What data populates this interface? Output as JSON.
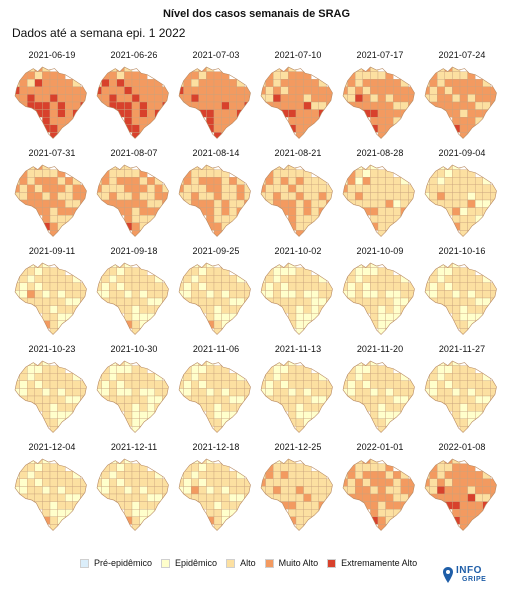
{
  "title": "Nível dos casos semanais de SRAG",
  "subtitle": "Dados até a semana epi. 1 2022",
  "colors": {
    "pre": "#dbeefa",
    "epi": "#ffffcc",
    "alto": "#fce0a1",
    "muito": "#f39a60",
    "extremo": "#d8412c",
    "border": "#c9a27c"
  },
  "maps": [
    {
      "date": "2021-06-19",
      "level": 3.2
    },
    {
      "date": "2021-06-26",
      "level": 3.3
    },
    {
      "date": "2021-07-03",
      "level": 3.1
    },
    {
      "date": "2021-07-10",
      "level": 2.9
    },
    {
      "date": "2021-07-17",
      "level": 2.8
    },
    {
      "date": "2021-07-24",
      "level": 2.7
    },
    {
      "date": "2021-07-31",
      "level": 2.6
    },
    {
      "date": "2021-08-07",
      "level": 2.5
    },
    {
      "date": "2021-08-14",
      "level": 2.4
    },
    {
      "date": "2021-08-21",
      "level": 2.3
    },
    {
      "date": "2021-08-28",
      "level": 2.0
    },
    {
      "date": "2021-09-04",
      "level": 1.9
    },
    {
      "date": "2021-09-11",
      "level": 1.8
    },
    {
      "date": "2021-09-18",
      "level": 1.7
    },
    {
      "date": "2021-09-25",
      "level": 1.7
    },
    {
      "date": "2021-10-02",
      "level": 1.5
    },
    {
      "date": "2021-10-09",
      "level": 1.5
    },
    {
      "date": "2021-10-16",
      "level": 1.6
    },
    {
      "date": "2021-10-23",
      "level": 1.6
    },
    {
      "date": "2021-10-30",
      "level": 1.5
    },
    {
      "date": "2021-11-06",
      "level": 1.6
    },
    {
      "date": "2021-11-13",
      "level": 1.6
    },
    {
      "date": "2021-11-20",
      "level": 1.6
    },
    {
      "date": "2021-11-27",
      "level": 1.6
    },
    {
      "date": "2021-12-04",
      "level": 1.7
    },
    {
      "date": "2021-12-11",
      "level": 1.7
    },
    {
      "date": "2021-12-18",
      "level": 1.8
    },
    {
      "date": "2021-12-25",
      "level": 2.1
    },
    {
      "date": "2022-01-01",
      "level": 2.6
    },
    {
      "date": "2022-01-08",
      "level": 2.9
    }
  ],
  "legend": [
    {
      "label": "Pré-epidêmico",
      "color": "#dbeefa"
    },
    {
      "label": "Epidêmico",
      "color": "#ffffcc"
    },
    {
      "label": "Alto",
      "color": "#fce0a1"
    },
    {
      "label": "Muito Alto",
      "color": "#f39a60"
    },
    {
      "label": "Extremamente Alto",
      "color": "#d8412c"
    }
  ],
  "logo": {
    "line1": "INFO",
    "line2": "GRIPE",
    "icon": "map-pin-icon"
  }
}
